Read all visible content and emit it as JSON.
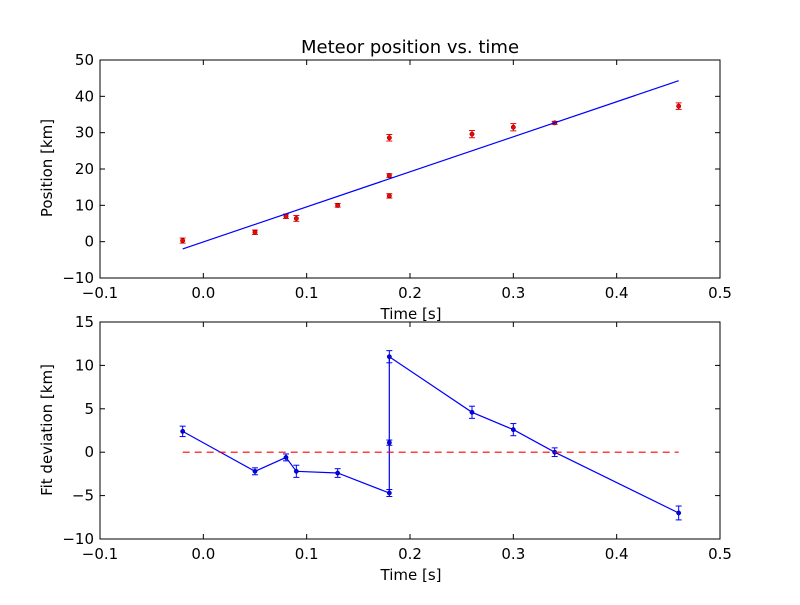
{
  "chart_data": [
    {
      "type": "scatter",
      "title": "Meteor position vs. time",
      "xlabel": "Time [s]",
      "ylabel": "Position [km]",
      "xlim": [
        -0.1,
        0.5
      ],
      "ylim": [
        -10,
        50
      ],
      "xticks": [
        -0.1,
        0.0,
        0.1,
        0.2,
        0.3,
        0.4,
        0.5
      ],
      "xtick_labels": [
        "−0.1",
        "0.0",
        "0.1",
        "0.2",
        "0.3",
        "0.4",
        "0.5"
      ],
      "yticks": [
        -10,
        0,
        10,
        20,
        30,
        40,
        50
      ],
      "ytick_labels": [
        "−10",
        "0",
        "10",
        "20",
        "30",
        "40",
        "50"
      ],
      "grid": false,
      "series": [
        {
          "kind": "errorbar_points",
          "color": "#ff0000",
          "x": [
            -0.02,
            0.05,
            0.08,
            0.09,
            0.13,
            0.18,
            0.18,
            0.18,
            0.26,
            0.3,
            0.34,
            0.46
          ],
          "y": [
            0.3,
            2.6,
            7.0,
            6.4,
            10.0,
            12.6,
            18.2,
            28.6,
            29.6,
            31.5,
            32.7,
            37.3
          ],
          "yerr": [
            0.7,
            0.6,
            0.6,
            0.8,
            0.5,
            0.6,
            0.5,
            0.9,
            1.0,
            1.0,
            0.4,
            0.9
          ]
        },
        {
          "kind": "line",
          "color": "#0000ff",
          "x": [
            -0.02,
            0.46
          ],
          "y": [
            -2.0,
            44.3
          ]
        }
      ]
    },
    {
      "type": "line",
      "title": "",
      "xlabel": "Time [s]",
      "ylabel": "Fit deviation [km]",
      "xlim": [
        -0.1,
        0.5
      ],
      "ylim": [
        -10,
        15
      ],
      "xticks": [
        -0.1,
        0.0,
        0.1,
        0.2,
        0.3,
        0.4,
        0.5
      ],
      "xtick_labels": [
        "−0.1",
        "0.0",
        "0.1",
        "0.2",
        "0.3",
        "0.4",
        "0.5"
      ],
      "yticks": [
        -10,
        -5,
        0,
        5,
        10,
        15
      ],
      "ytick_labels": [
        "−10",
        "−5",
        "0",
        "5",
        "10",
        "15"
      ],
      "grid": false,
      "series": [
        {
          "kind": "errorbar_line",
          "color": "#0000ff",
          "x": [
            -0.02,
            0.05,
            0.08,
            0.09,
            0.13,
            0.18,
            0.18,
            0.18,
            0.26,
            0.3,
            0.34,
            0.46
          ],
          "y": [
            2.4,
            -2.2,
            -0.6,
            -2.2,
            -2.4,
            -4.7,
            1.1,
            11.0,
            4.6,
            2.6,
            0.0,
            -7.0
          ],
          "yerr": [
            0.6,
            0.4,
            0.4,
            0.7,
            0.5,
            0.4,
            0.3,
            0.7,
            0.7,
            0.7,
            0.5,
            0.8
          ]
        },
        {
          "kind": "dashed_line",
          "color": "#ff0000",
          "x": [
            -0.02,
            0.46
          ],
          "y": [
            0,
            0
          ]
        }
      ]
    }
  ]
}
